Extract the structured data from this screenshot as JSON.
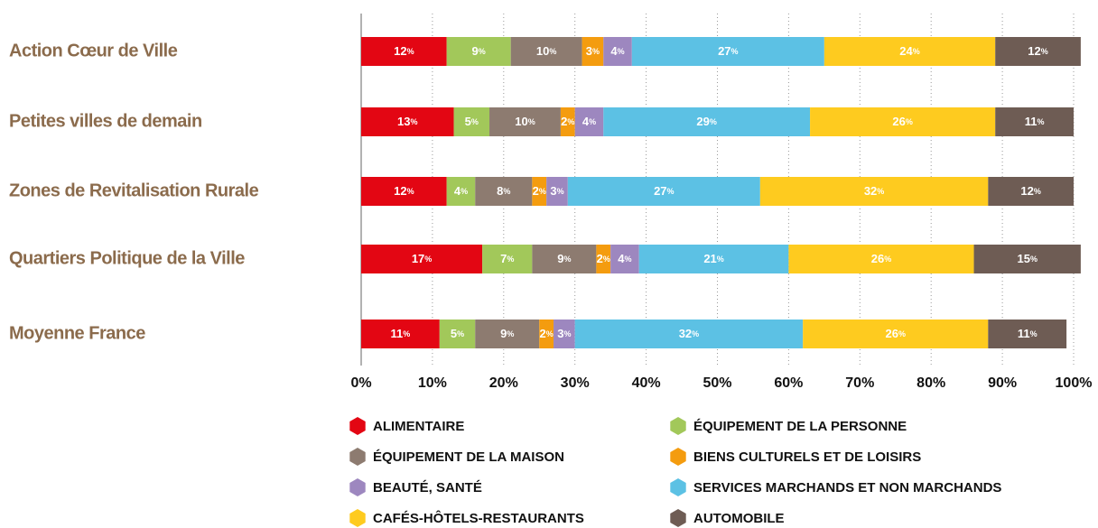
{
  "chart_data": {
    "type": "stacked_hbar",
    "categories": [
      "Action Cœur de Ville",
      "Petites villes de demain",
      "Zones de Revitalisation Rurale",
      "Quartiers Politique de la Ville",
      "Moyenne France"
    ],
    "series": [
      {
        "name": "ALIMENTAIRE",
        "color": "#e30613",
        "values": [
          12,
          13,
          12,
          17,
          11
        ],
        "value_labels": [
          "12%",
          "13%",
          "12%",
          "17%",
          "11%"
        ]
      },
      {
        "name": "ÉQUIPEMENT DE LA PERSONNE",
        "color": "#a2c85a",
        "values": [
          9,
          5,
          4,
          7,
          5
        ],
        "value_labels": [
          "9%",
          "5%",
          "4%",
          "7%",
          "5%"
        ]
      },
      {
        "name": "ÉQUIPEMENT DE LA MAISON",
        "color": "#8d7b70",
        "values": [
          10,
          10,
          8,
          9,
          9
        ],
        "value_labels": [
          "10%",
          "10%",
          "8%",
          "9%",
          "9%"
        ]
      },
      {
        "name": "BIENS CULTURELS ET DE LOISIRS",
        "color": "#f49c0f",
        "values": [
          3,
          2,
          2,
          2,
          2
        ],
        "value_labels": [
          "3%",
          "2%",
          "2%",
          "2%",
          "2%"
        ]
      },
      {
        "name": "BEAUTÉ, SANTÉ",
        "color": "#9d87bf",
        "values": [
          4,
          4,
          3,
          4,
          3
        ],
        "value_labels": [
          "4%",
          "4%",
          "3%",
          "4%",
          "3%"
        ]
      },
      {
        "name": "SERVICES MARCHANDS ET NON MARCHANDS",
        "color": "#5cc1e4",
        "values": [
          27,
          29,
          27,
          21,
          32
        ],
        "value_labels": [
          "27%",
          "29%",
          "27%",
          "21%",
          "32%"
        ]
      },
      {
        "name": "CAFÉS-HÔTELS-RESTAURANTS",
        "color": "#fecb1f",
        "values": [
          24,
          26,
          32,
          26,
          26
        ],
        "value_labels": [
          "24%",
          "26%",
          "32%",
          "26%",
          "26%"
        ]
      },
      {
        "name": "AUTOMOBILE",
        "color": "#6e5c54",
        "values": [
          12,
          11,
          12,
          15,
          11
        ],
        "value_labels": [
          "12%",
          "11%",
          "12%",
          "15%",
          "11%"
        ]
      }
    ],
    "xlim": [
      0,
      100
    ],
    "xticks": [
      {
        "value": 0,
        "label": "0%"
      },
      {
        "value": 10,
        "label": "10%"
      },
      {
        "value": 20,
        "label": "20%"
      },
      {
        "value": 30,
        "label": "30%"
      },
      {
        "value": 40,
        "label": "40%"
      },
      {
        "value": 50,
        "label": "50%"
      },
      {
        "value": 60,
        "label": "60%"
      },
      {
        "value": 70,
        "label": "70%"
      },
      {
        "value": 80,
        "label": "80%"
      },
      {
        "value": 90,
        "label": "90%"
      },
      {
        "value": 100,
        "label": "100%"
      }
    ],
    "grid": true
  }
}
